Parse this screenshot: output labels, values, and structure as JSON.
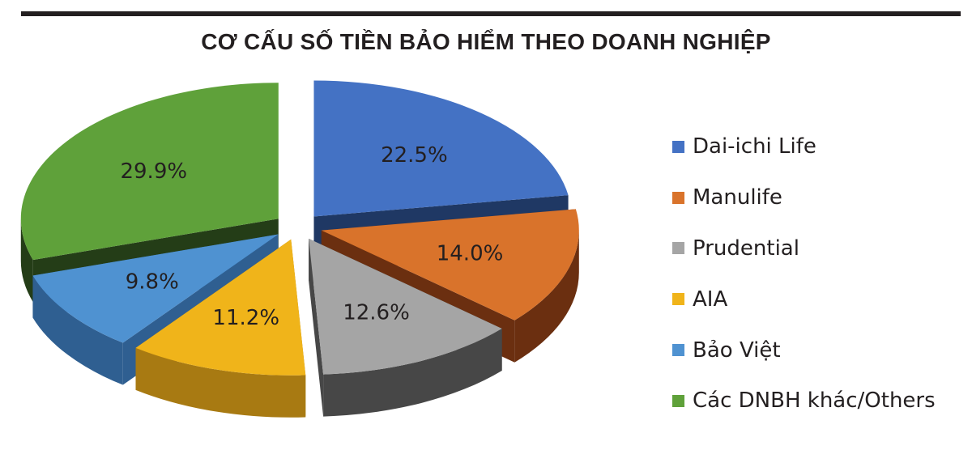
{
  "title": "CƠ CẤU SỐ TIỀN BẢO HIỂM THEO DOANH NGHIỆP",
  "chart_data": {
    "type": "pie",
    "title": "CƠ CẤU SỐ TIỀN BẢO HIỂM THEO DOANH NGHIỆP",
    "style": "3d-exploded",
    "legend_position": "right",
    "slices": [
      {
        "label": "Dai-ichi Life",
        "value": 22.5,
        "display": "22.5%",
        "color": "#4472c4",
        "side_color": "#1f3864"
      },
      {
        "label": "Manulife",
        "value": 14.0,
        "display": "14.0%",
        "color": "#d9732b",
        "side_color": "#6b2f10"
      },
      {
        "label": "Prudential",
        "value": 12.6,
        "display": "12.6%",
        "color": "#a5a5a5",
        "side_color": "#474747"
      },
      {
        "label": "AIA",
        "value": 11.2,
        "display": "11.2%",
        "color": "#f0b41a",
        "side_color": "#a87a12"
      },
      {
        "label": "Bảo Việt",
        "value": 9.8,
        "display": "9.8%",
        "color": "#4f92d1",
        "side_color": "#2f5f91"
      },
      {
        "label": "Các DNBH khác/Others",
        "value": 29.9,
        "display": "29.9%",
        "color": "#5fa13a",
        "side_color": "#243d17"
      }
    ]
  }
}
